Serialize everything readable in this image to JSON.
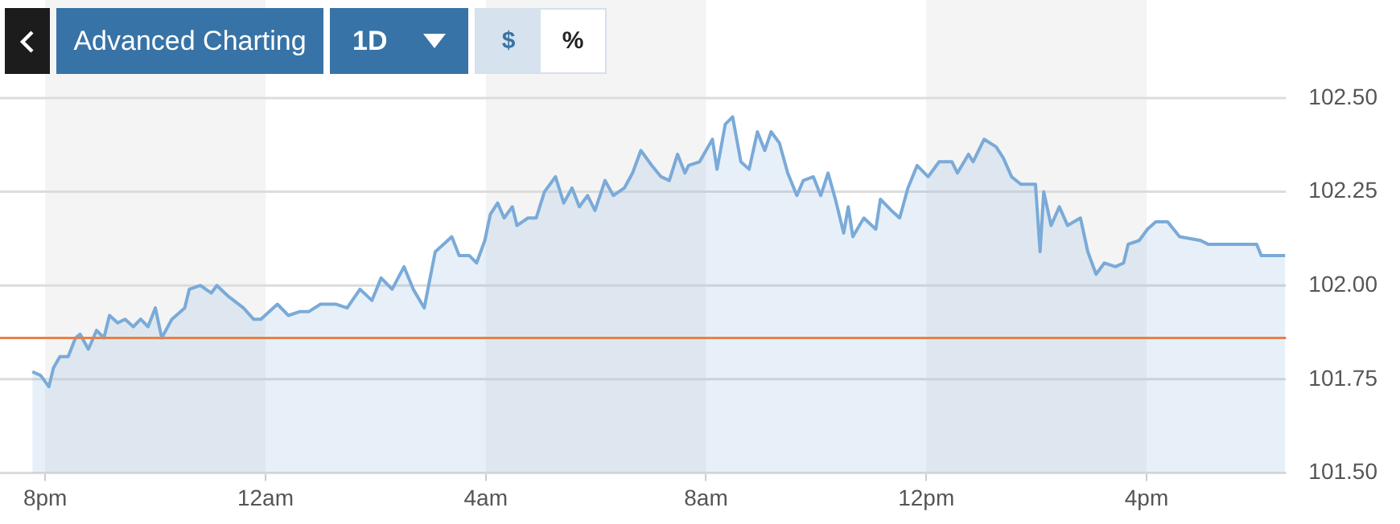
{
  "chart_data": {
    "type": "area",
    "annotations": [
      "Advanced Charting",
      "1D",
      "$",
      "%"
    ],
    "xlim": [
      "--01-01T19:16",
      "--01-02T18:32"
    ],
    "xticks": [
      {
        "value": "--01-01T20:00",
        "label": "8pm"
      },
      {
        "value": "--01-02T00:00",
        "label": "12am"
      },
      {
        "value": "--01-02T04:00",
        "label": "4am"
      },
      {
        "value": "--01-02T08:00",
        "label": "8am"
      },
      {
        "value": "--01-02T12:00",
        "label": "12pm"
      },
      {
        "value": "--01-02T16:00",
        "label": "4pm"
      }
    ],
    "ylim": [
      101.5,
      102.5
    ],
    "yticks": [
      {
        "value": 101.5,
        "label": "101.50"
      },
      {
        "value": 101.75,
        "label": "101.75"
      },
      {
        "value": 102,
        "label": "102.00"
      },
      {
        "value": 102.25,
        "label": "102.25"
      },
      {
        "value": 102.5,
        "label": "102.50"
      }
    ],
    "grid": "y",
    "bands": [
      {
        "axis": "x",
        "from": "--01-01T20:00",
        "to": "--01-02T00:00",
        "color": "#f4f4f4"
      },
      {
        "axis": "x",
        "from": "--01-02T04:00",
        "to": "--01-02T08:00",
        "color": "#f4f4f4"
      },
      {
        "axis": "x",
        "from": "--01-02T12:00",
        "to": "--01-02T16:00",
        "color": "#f4f4f4"
      }
    ],
    "ref_lines": [
      {
        "axis": "y",
        "value": 101.86,
        "color": "#e8804a"
      }
    ],
    "series": [
      {
        "color": "#7aaad8",
        "x": [
          "--01-01T19:46",
          "--01-01T19:55",
          "--01-01T20:04",
          "--01-01T20:09",
          "--01-01T20:16",
          "--01-01T20:25",
          "--01-01T20:33",
          "--01-01T20:38",
          "--01-01T20:47",
          "--01-01T20:56",
          "--01-01T21:04",
          "--01-01T21:10",
          "--01-01T21:19",
          "--01-01T21:27",
          "--01-01T21:36",
          "--01-01T21:44",
          "--01-01T21:52",
          "--01-01T22:00",
          "--01-01T22:07",
          "--01-01T22:18",
          "--01-01T22:32",
          "--01-01T22:37",
          "--01-01T22:49",
          "--01-01T23:01",
          "--01-01T23:07",
          "--01-01T23:20",
          "--01-01T23:36",
          "--01-01T23:47",
          "--01-01T23:55",
          "--01-02T00:13",
          "--01-02T00:25",
          "--01-02T00:37",
          "--01-02T00:47",
          "--01-02T01:00",
          "--01-02T01:17",
          "--01-02T01:29",
          "--01-02T01:43",
          "--01-02T01:56",
          "--01-02T02:06",
          "--01-02T02:18",
          "--01-02T02:31",
          "--01-02T02:41",
          "--01-02T02:53",
          "--01-02T03:05",
          "--01-02T03:14",
          "--01-02T03:23",
          "--01-02T03:31",
          "--01-02T03:42",
          "--01-02T03:50",
          "--01-02T03:59",
          "--01-02T04:05",
          "--01-02T04:13",
          "--01-02T04:20",
          "--01-02T04:29",
          "--01-02T04:34",
          "--01-02T04:46",
          "--01-02T04:55",
          "--01-02T05:04",
          "--01-02T05:16",
          "--01-02T05:25",
          "--01-02T05:34",
          "--01-02T05:42",
          "--01-02T05:51",
          "--01-02T05:59",
          "--01-02T06:10",
          "--01-02T06:19",
          "--01-02T06:31",
          "--01-02T06:40",
          "--01-02T06:49",
          "--01-02T07:01",
          "--01-02T07:11",
          "--01-02T07:20",
          "--01-02T07:29",
          "--01-02T07:37",
          "--01-02T07:41",
          "--01-02T07:53",
          "--01-02T08:07",
          "--01-02T08:12",
          "--01-02T08:21",
          "--01-02T08:29",
          "--01-02T08:38",
          "--01-02T08:47",
          "--01-02T08:56",
          "--01-02T09:04",
          "--01-02T09:11",
          "--01-02T09:20",
          "--01-02T09:29",
          "--01-02T09:39",
          "--01-02T09:46",
          "--01-02T09:57",
          "--01-02T10:05",
          "--01-02T10:13",
          "--01-02T10:21",
          "--01-02T10:30",
          "--01-02T10:35",
          "--01-02T10:40",
          "--01-02T10:52",
          "--01-02T11:05",
          "--01-02T11:10",
          "--01-02T11:22",
          "--01-02T11:31",
          "--01-02T11:40",
          "--01-02T11:50",
          "--01-02T12:02",
          "--01-02T12:14",
          "--01-02T12:28",
          "--01-02T12:34",
          "--01-02T12:46",
          "--01-02T12:51",
          "--01-02T13:03",
          "--01-02T13:16",
          "--01-02T13:24",
          "--01-02T13:33",
          "--01-02T13:43",
          "--01-02T13:59",
          "--01-02T14:04",
          "--01-02T14:08",
          "--01-02T14:16",
          "--01-02T14:25",
          "--01-02T14:34",
          "--01-02T14:48",
          "--01-02T14:56",
          "--01-02T15:05",
          "--01-02T15:14",
          "--01-02T15:26",
          "--01-02T15:35",
          "--01-02T15:40",
          "--01-02T15:52",
          "--01-02T16:01",
          "--01-02T16:10",
          "--01-02T16:23",
          "--01-02T16:36",
          "--01-02T16:59",
          "--01-02T17:07",
          "--01-02T17:16",
          "--01-02T17:34",
          "--01-02T18:00",
          "--01-02T18:05",
          "--01-02T18:31"
        ],
        "values": [
          101.77,
          101.76,
          101.73,
          101.78,
          101.81,
          101.81,
          101.86,
          101.87,
          101.83,
          101.88,
          101.86,
          101.92,
          101.9,
          101.91,
          101.89,
          101.91,
          101.89,
          101.94,
          101.86,
          101.91,
          101.94,
          101.99,
          102,
          101.98,
          102,
          101.97,
          101.94,
          101.91,
          101.91,
          101.95,
          101.92,
          101.93,
          101.93,
          101.95,
          101.95,
          101.94,
          101.99,
          101.96,
          102.02,
          101.99,
          102.05,
          101.99,
          101.94,
          102.09,
          102.11,
          102.13,
          102.08,
          102.08,
          102.06,
          102.12,
          102.19,
          102.22,
          102.18,
          102.21,
          102.16,
          102.18,
          102.18,
          102.25,
          102.29,
          102.22,
          102.26,
          102.21,
          102.24,
          102.2,
          102.28,
          102.24,
          102.26,
          102.3,
          102.36,
          102.32,
          102.29,
          102.28,
          102.35,
          102.3,
          102.32,
          102.33,
          102.39,
          102.31,
          102.43,
          102.45,
          102.33,
          102.31,
          102.41,
          102.36,
          102.41,
          102.38,
          102.3,
          102.24,
          102.28,
          102.29,
          102.24,
          102.3,
          102.23,
          102.14,
          102.21,
          102.13,
          102.18,
          102.15,
          102.23,
          102.2,
          102.18,
          102.26,
          102.32,
          102.29,
          102.33,
          102.33,
          102.3,
          102.35,
          102.33,
          102.39,
          102.37,
          102.34,
          102.29,
          102.27,
          102.27,
          102.09,
          102.25,
          102.16,
          102.21,
          102.16,
          102.18,
          102.09,
          102.03,
          102.06,
          102.05,
          102.06,
          102.11,
          102.12,
          102.15,
          102.17,
          102.17,
          102.13,
          102.12,
          102.11,
          102.11,
          102.11,
          102.11,
          102.08,
          102.08
        ]
      }
    ]
  }
}
